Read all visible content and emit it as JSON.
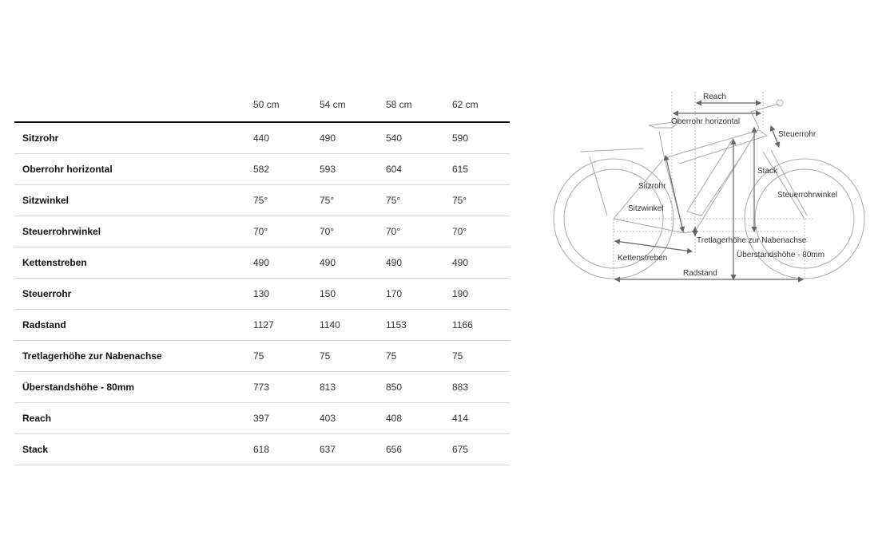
{
  "table": {
    "columns": [
      "50 cm",
      "54 cm",
      "58 cm",
      "62 cm"
    ],
    "rows": [
      {
        "label": "Sitzrohr",
        "values": [
          "440",
          "490",
          "540",
          "590"
        ]
      },
      {
        "label": "Oberrohr horizontal",
        "values": [
          "582",
          "593",
          "604",
          "615"
        ]
      },
      {
        "label": "Sitzwinkel",
        "values": [
          "75°",
          "75°",
          "75°",
          "75°"
        ]
      },
      {
        "label": "Steuerrohrwinkel",
        "values": [
          "70°",
          "70°",
          "70°",
          "70°"
        ]
      },
      {
        "label": "Kettenstreben",
        "values": [
          "490",
          "490",
          "490",
          "490"
        ]
      },
      {
        "label": "Steuerrohr",
        "values": [
          "130",
          "150",
          "170",
          "190"
        ]
      },
      {
        "label": "Radstand",
        "values": [
          "1127",
          "1140",
          "1153",
          "1166"
        ]
      },
      {
        "label": "Tretlagerhöhe zur Nabenachse",
        "values": [
          "75",
          "75",
          "75",
          "75"
        ]
      },
      {
        "label": "Überstandshöhe - 80mm",
        "values": [
          "773",
          "813",
          "850",
          "883"
        ]
      },
      {
        "label": "Reach",
        "values": [
          "397",
          "403",
          "408",
          "414"
        ]
      },
      {
        "label": "Stack",
        "values": [
          "618",
          "637",
          "656",
          "675"
        ]
      }
    ]
  },
  "diagram": {
    "labels": {
      "reach": "Reach",
      "oberrohr": "Oberrohr horizontal",
      "steuerrohr": "Steuerrohr",
      "stack": "Stack",
      "sitzrohr": "Sitzrohr",
      "steuerrohrwinkel": "Steuerrohrwinkel",
      "sitzwinkel": "Sitzwinkel",
      "tretlager": "Tretlagerhöhe zur Nabenachse",
      "kettenstreben": "Kettenstreben",
      "ueberstand": "Überstandshöhe - 80mm",
      "radstand": "Radstand"
    }
  }
}
